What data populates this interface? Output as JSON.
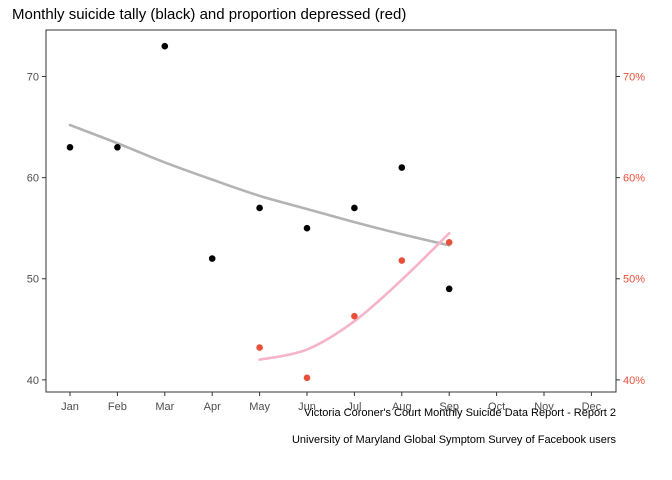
{
  "chart_data": {
    "type": "scatter",
    "title": "Monthly suicide tally (black) and proportion depressed (red)",
    "categories": [
      "Jan",
      "Feb",
      "Mar",
      "Apr",
      "May",
      "Jun",
      "Jul",
      "Aug",
      "Sep",
      "Oct",
      "Nov",
      "Dec"
    ],
    "y_left": {
      "ticks": [
        "40",
        "50",
        "60",
        "70"
      ],
      "tick_values": [
        40,
        50,
        60,
        70
      ],
      "range": [
        38.8,
        74.6
      ]
    },
    "y_right": {
      "ticks": [
        "40%",
        "50%",
        "60%",
        "70%"
      ],
      "tick_values": [
        40,
        50,
        60,
        70
      ],
      "range": [
        38.8,
        74.6
      ],
      "color": "#e8503a"
    },
    "series": [
      {
        "color": "#000000",
        "points": [
          {
            "x": "Jan",
            "y": 63
          },
          {
            "x": "Feb",
            "y": 63
          },
          {
            "x": "Mar",
            "y": 73
          },
          {
            "x": "Apr",
            "y": 52
          },
          {
            "x": "May",
            "y": 57
          },
          {
            "x": "Jun",
            "y": 55
          },
          {
            "x": "Jul",
            "y": 57
          },
          {
            "x": "Aug",
            "y": 61
          },
          {
            "x": "Sep",
            "y": 49
          }
        ],
        "smooth": {
          "color": "#b3b3b3",
          "x": [
            "Jan",
            "Feb",
            "Mar",
            "Apr",
            "May",
            "Jun",
            "Jul",
            "Aug",
            "Sep"
          ],
          "y": [
            65.2,
            63.4,
            61.5,
            59.8,
            58.2,
            56.9,
            55.6,
            54.4,
            53.3
          ]
        }
      },
      {
        "color": "#e8503a",
        "axis": "right",
        "points": [
          {
            "x": "May",
            "y": 43.2
          },
          {
            "x": "Jun",
            "y": 40.2
          },
          {
            "x": "Jul",
            "y": 46.3
          },
          {
            "x": "Aug",
            "y": 51.8
          },
          {
            "x": "Sep",
            "y": 53.6
          }
        ],
        "smooth": {
          "color": "#f5b4c7",
          "x": [
            "May",
            "Jun",
            "Jul",
            "Aug",
            "Sep"
          ],
          "y": [
            42.0,
            43.0,
            45.8,
            49.9,
            54.5
          ]
        }
      }
    ],
    "legend": "none",
    "grid": false,
    "captions": [
      "Victoria Coroner's Court Monthly Suicide Data Report - Report 2",
      "University of Maryland Global Symptom Survey of Facebook users"
    ]
  }
}
